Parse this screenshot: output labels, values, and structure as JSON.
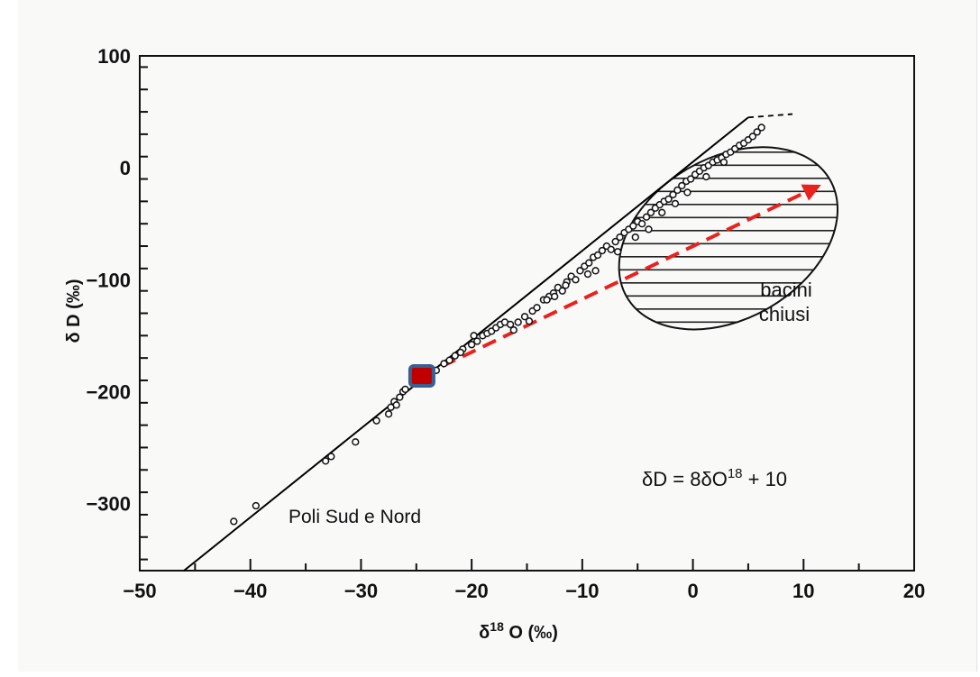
{
  "chart_data": {
    "type": "scatter",
    "xlabel": "δ18 O (‰)",
    "ylabel": "δ D (‰)",
    "xlim": [
      -50,
      20
    ],
    "ylim": [
      -360,
      100
    ],
    "x_ticks": [
      "−50",
      "−40",
      "−30",
      "−20",
      "−10",
      "0",
      "10",
      "20"
    ],
    "y_ticks": [
      "−300",
      "−200",
      "−100",
      "0",
      "100"
    ],
    "equation": "δD = 8δO18 + 10",
    "series": [
      {
        "values": [
          [
            -41.5,
            -316
          ],
          [
            -39.5,
            -302
          ],
          [
            -33.2,
            -262
          ],
          [
            -32.7,
            -258
          ],
          [
            -30.5,
            -245
          ],
          [
            -28.6,
            -226
          ],
          [
            -27.5,
            -220
          ],
          [
            -27.3,
            -214
          ],
          [
            -27.0,
            -209
          ],
          [
            -26.8,
            -212
          ],
          [
            -26.5,
            -205
          ],
          [
            -26.2,
            -200
          ],
          [
            -26.0,
            -198
          ],
          [
            -24.5,
            -187
          ],
          [
            -23.7,
            -183
          ],
          [
            -23.2,
            -181
          ],
          [
            -22.5,
            -175
          ],
          [
            -22.0,
            -172
          ],
          [
            -21.5,
            -168
          ],
          [
            -20.8,
            -162
          ],
          [
            -20.0,
            -158
          ],
          [
            -19.5,
            -155
          ],
          [
            -19.0,
            -150
          ],
          [
            -18.6,
            -148
          ],
          [
            -18.2,
            -146
          ],
          [
            -17.8,
            -143
          ],
          [
            -17.4,
            -140
          ],
          [
            -17.0,
            -138
          ],
          [
            -16.5,
            -140
          ],
          [
            -16.2,
            -145
          ],
          [
            -15.8,
            -138
          ],
          [
            -15.2,
            -133
          ],
          [
            -14.8,
            -137
          ],
          [
            -14.5,
            -128
          ],
          [
            -14.1,
            -125
          ],
          [
            -13.5,
            -118
          ],
          [
            -13.0,
            -115
          ],
          [
            -12.6,
            -112
          ],
          [
            -12.2,
            -107
          ],
          [
            -11.8,
            -110
          ],
          [
            -11.4,
            -102
          ],
          [
            -11.0,
            -97
          ],
          [
            -10.6,
            -100
          ],
          [
            -10.2,
            -92
          ],
          [
            -9.8,
            -88
          ],
          [
            -9.4,
            -85
          ],
          [
            -9.0,
            -80
          ],
          [
            -8.6,
            -78
          ],
          [
            -8.2,
            -74
          ],
          [
            -7.8,
            -70
          ],
          [
            -7.4,
            -73
          ],
          [
            -7.0,
            -66
          ],
          [
            -6.6,
            -62
          ],
          [
            -6.2,
            -58
          ],
          [
            -5.8,
            -55
          ],
          [
            -5.4,
            -52
          ],
          [
            -5.0,
            -48
          ],
          [
            -4.6,
            -50
          ],
          [
            -4.2,
            -44
          ],
          [
            -3.8,
            -40
          ],
          [
            -3.4,
            -36
          ],
          [
            -3.0,
            -33
          ],
          [
            -2.6,
            -30
          ],
          [
            -2.2,
            -28
          ],
          [
            -1.8,
            -24
          ],
          [
            -1.4,
            -20
          ],
          [
            -1.0,
            -16
          ],
          [
            -0.6,
            -12
          ],
          [
            -0.2,
            -10
          ],
          [
            0.2,
            -6
          ],
          [
            0.6,
            -3
          ],
          [
            1.0,
            0
          ],
          [
            1.4,
            2
          ],
          [
            1.8,
            5
          ],
          [
            2.2,
            7
          ],
          [
            2.6,
            9
          ],
          [
            3.0,
            12
          ],
          [
            3.4,
            14
          ],
          [
            3.8,
            17
          ],
          [
            4.2,
            20
          ],
          [
            4.6,
            22
          ],
          [
            5.0,
            25
          ],
          [
            5.4,
            28
          ],
          [
            5.8,
            32
          ],
          [
            6.2,
            36
          ],
          [
            -8.8,
            -92
          ],
          [
            -9.5,
            -95
          ],
          [
            -12.5,
            -115
          ],
          [
            -13.2,
            -118
          ],
          [
            -11.5,
            -105
          ],
          [
            -6.8,
            -75
          ],
          [
            -5.2,
            -62
          ],
          [
            -4.0,
            -55
          ],
          [
            -2.8,
            -40
          ],
          [
            -1.6,
            -32
          ],
          [
            -0.5,
            -22
          ],
          [
            1.2,
            -8
          ],
          [
            2.8,
            5
          ],
          [
            -19.8,
            -150
          ],
          [
            -21.0,
            -165
          ]
        ]
      }
    ],
    "lines": [
      {
        "from": [
          -46,
          -360
        ],
        "to": [
          5,
          45
        ],
        "style": "solid",
        "color": "#000000"
      },
      {
        "from": [
          5,
          45
        ],
        "to": [
          9,
          48
        ],
        "style": "dashed",
        "color": "#000000"
      },
      {
        "from": [
          -24.5,
          -186
        ],
        "to": [
          11,
          -18
        ],
        "style": "dashed-arrow",
        "color": "#e8231f"
      }
    ],
    "marker": {
      "x": -24.5,
      "y": -186,
      "fill": "#c00000",
      "stroke": "#3a5f8f"
    },
    "region": {
      "label_lines": [
        "bacini",
        "chiusi"
      ],
      "center": [
        3.2,
        -63
      ],
      "rx_data": 10.6,
      "ry_data": 72,
      "hatched": true
    },
    "annotations": [
      {
        "text": "Poli Sud e Nord",
        "x": -37.3,
        "y": -314
      }
    ],
    "grid": false,
    "legend": "none"
  }
}
